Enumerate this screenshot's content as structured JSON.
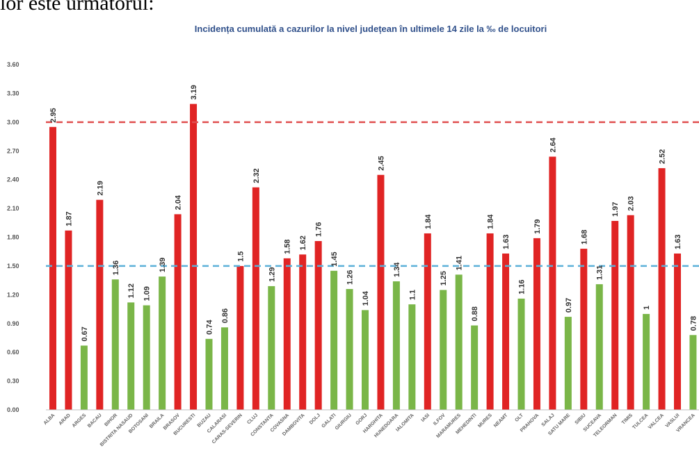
{
  "caption": "lor este următorul:",
  "chart_data": {
    "type": "bar",
    "title": "Incidența cumulată a cazurilor la nivel județean în ultimele 14 zile la ‰ de locuitori",
    "xlabel": "",
    "ylabel": "",
    "ylim": [
      0,
      3.6
    ],
    "yticks": [
      "0.00",
      "0.30",
      "0.60",
      "0.90",
      "1.20",
      "1.50",
      "1.80",
      "2.10",
      "2.40",
      "2.70",
      "3.00",
      "3.30",
      "3.60"
    ],
    "categories": [
      "ALBA",
      "ARAD",
      "ARGES",
      "BACAU",
      "BIHOR",
      "BISTRITA NASAUD",
      "BOTOSANI",
      "BRAILA",
      "BRASOV",
      "BUCURESTI",
      "BUZAU",
      "CALARASI",
      "CARAS-SEVERIN",
      "CLUJ",
      "CONSTANTA",
      "COVASNA",
      "DAMBOVITA",
      "DOLJ",
      "GALATI",
      "GIURGIU",
      "GORJ",
      "HARGHITA",
      "HUNEDOARA",
      "IALOMITA",
      "IASI",
      "ILFOV",
      "MARAMURES",
      "MEHEDINTI",
      "MURES",
      "NEAMT",
      "OLT",
      "PRAHOVA",
      "SALAJ",
      "SATU MARE",
      "SIBIU",
      "SUCEAVA",
      "TELEORMAN",
      "TIMIS",
      "TULCEA",
      "VALCEA",
      "VASLUI",
      "VRANCEA"
    ],
    "values": [
      2.95,
      1.87,
      0.67,
      2.19,
      1.36,
      1.12,
      1.09,
      1.39,
      2.04,
      3.19,
      0.74,
      0.86,
      1.5,
      2.32,
      1.29,
      1.58,
      1.62,
      1.76,
      1.45,
      1.26,
      1.04,
      2.45,
      1.34,
      1.1,
      1.84,
      1.25,
      1.41,
      0.88,
      1.84,
      1.63,
      1.16,
      1.79,
      2.64,
      0.97,
      1.68,
      1.31,
      1.97,
      2.03,
      1,
      2.52,
      1.63,
      0.78
    ],
    "data_labels": [
      "2.95",
      "1.87",
      "0.67",
      "2.19",
      "1.36",
      "1.12",
      "1.09",
      "1.39",
      "2.04",
      "3.19",
      "0.74",
      "0.86",
      "1.5",
      "2.32",
      "1.29",
      "1.58",
      "1.62",
      "1.76",
      "1.45",
      "1.26",
      "1.04",
      "2.45",
      "1.34",
      "1.1",
      "1.84",
      "1.25",
      "1.41",
      "0.88",
      "1.84",
      "1.63",
      "1.16",
      "1.79",
      "2.64",
      "0.97",
      "1.68",
      "1.31",
      "1.97",
      "2.03",
      "1",
      "2.52",
      "1.63",
      "0.78"
    ],
    "colors": {
      "above": "#e02424",
      "below": "#7ab648"
    },
    "thresholds": [
      {
        "value": 3.0,
        "color": "#e05050",
        "style": "dashed"
      },
      {
        "value": 1.5,
        "color": "#5bb0d8",
        "style": "dashed"
      }
    ],
    "grid": false,
    "legend": "none"
  }
}
